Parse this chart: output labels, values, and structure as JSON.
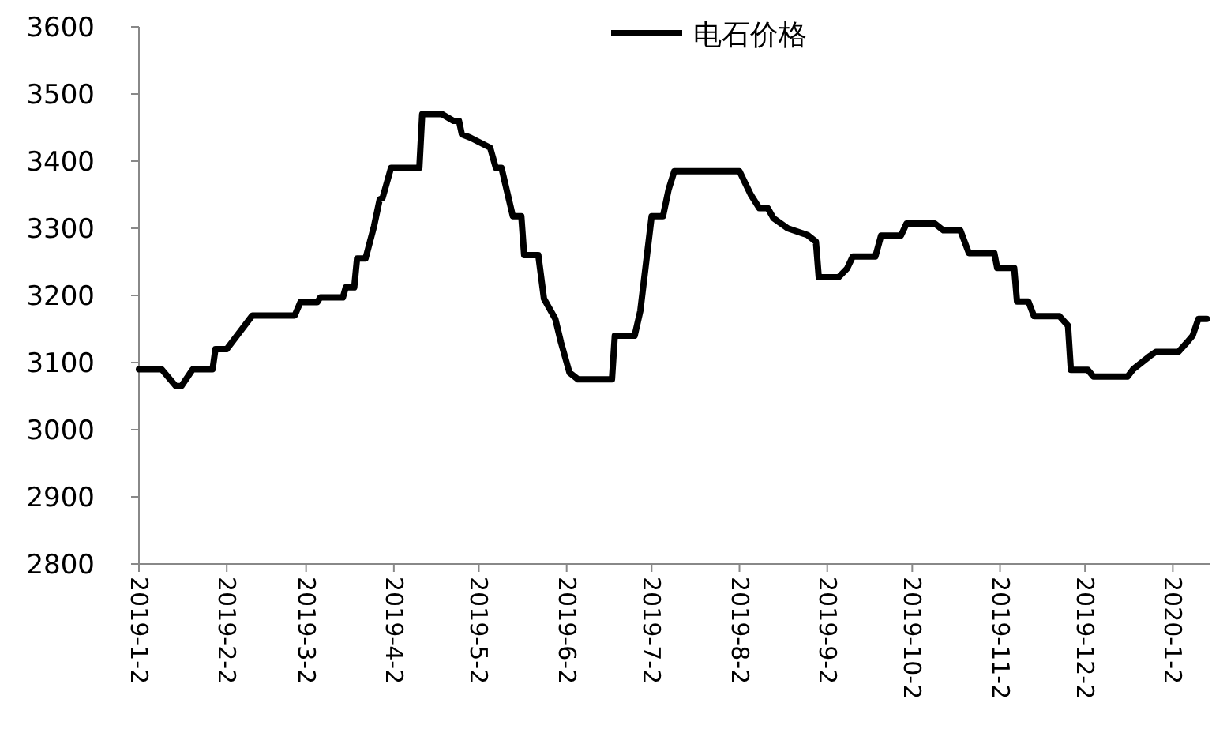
{
  "chart_data": {
    "type": "line",
    "x": [
      "2019-01-02",
      "2019-01-10",
      "2019-01-15",
      "2019-01-17",
      "2019-01-21",
      "2019-01-28",
      "2019-01-29",
      "2019-02-02",
      "2019-02-11",
      "2019-02-26",
      "2019-02-28",
      "2019-03-06",
      "2019-03-07",
      "2019-03-15",
      "2019-03-16",
      "2019-03-19",
      "2019-03-20",
      "2019-03-23",
      "2019-03-26",
      "2019-03-28",
      "2019-03-29",
      "2019-04-01",
      "2019-04-11",
      "2019-04-12",
      "2019-04-19",
      "2019-04-23",
      "2019-04-25",
      "2019-04-26",
      "2019-04-29",
      "2019-05-06",
      "2019-05-08",
      "2019-05-10",
      "2019-05-14",
      "2019-05-17",
      "2019-05-18",
      "2019-05-23",
      "2019-05-25",
      "2019-05-29",
      "2019-05-31",
      "2019-06-03",
      "2019-06-06",
      "2019-06-18",
      "2019-06-19",
      "2019-06-26",
      "2019-06-28",
      "2019-07-02",
      "2019-07-06",
      "2019-07-08",
      "2019-07-10",
      "2019-08-02",
      "2019-08-06",
      "2019-08-09",
      "2019-08-12",
      "2019-08-14",
      "2019-08-19",
      "2019-08-26",
      "2019-08-29",
      "2019-08-30",
      "2019-09-06",
      "2019-09-09",
      "2019-09-11",
      "2019-09-19",
      "2019-09-21",
      "2019-09-28",
      "2019-09-30",
      "2019-10-10",
      "2019-10-13",
      "2019-10-19",
      "2019-10-22",
      "2019-10-31",
      "2019-11-01",
      "2019-11-07",
      "2019-11-08",
      "2019-11-12",
      "2019-11-14",
      "2019-11-23",
      "2019-11-26",
      "2019-11-27",
      "2019-12-03",
      "2019-12-05",
      "2019-12-17",
      "2019-12-19",
      "2019-12-22",
      "2019-12-25",
      "2019-12-27",
      "2020-01-04",
      "2020-01-07",
      "2020-01-09",
      "2020-01-11",
      "2020-01-14"
    ],
    "series": [
      {
        "name": "电石价格",
        "color": "#000000",
        "values": [
          3090,
          3090,
          3065,
          3065,
          3090,
          3090,
          3120,
          3120,
          3170,
          3170,
          3190,
          3190,
          3197,
          3197,
          3212,
          3212,
          3255,
          3255,
          3303,
          3343,
          3345,
          3390,
          3390,
          3470,
          3470,
          3460,
          3460,
          3440,
          3435,
          3420,
          3390,
          3390,
          3318,
          3318,
          3260,
          3260,
          3195,
          3165,
          3130,
          3085,
          3075,
          3075,
          3140,
          3140,
          3177,
          3318,
          3318,
          3358,
          3385,
          3385,
          3350,
          3330,
          3330,
          3315,
          3300,
          3290,
          3280,
          3227,
          3227,
          3240,
          3258,
          3258,
          3289,
          3289,
          3307,
          3307,
          3297,
          3297,
          3263,
          3263,
          3241,
          3241,
          3191,
          3191,
          3169,
          3169,
          3155,
          3089,
          3089,
          3079,
          3079,
          3090,
          3100,
          3110,
          3116,
          3116,
          3130,
          3140,
          3165,
          3165
        ]
      }
    ],
    "xlim": [
      "2019-01-02",
      "2020-01-15"
    ],
    "xticks": [
      {
        "value": "2019-01-02",
        "label": "2019-1-2"
      },
      {
        "value": "2019-02-02",
        "label": "2019-2-2"
      },
      {
        "value": "2019-03-02",
        "label": "2019-3-2"
      },
      {
        "value": "2019-04-02",
        "label": "2019-4-2"
      },
      {
        "value": "2019-05-02",
        "label": "2019-5-2"
      },
      {
        "value": "2019-06-02",
        "label": "2019-6-2"
      },
      {
        "value": "2019-07-02",
        "label": "2019-7-2"
      },
      {
        "value": "2019-08-02",
        "label": "2019-8-2"
      },
      {
        "value": "2019-09-02",
        "label": "2019-9-2"
      },
      {
        "value": "2019-10-02",
        "label": "2019-10-2"
      },
      {
        "value": "2019-11-02",
        "label": "2019-11-2"
      },
      {
        "value": "2019-12-02",
        "label": "2019-12-2"
      },
      {
        "value": "2020-01-02",
        "label": "2020-1-2"
      }
    ],
    "ylim": [
      2800,
      3600
    ],
    "yticks": [
      2800,
      2900,
      3000,
      3100,
      3200,
      3300,
      3400,
      3500,
      3600
    ],
    "legend": "top"
  }
}
